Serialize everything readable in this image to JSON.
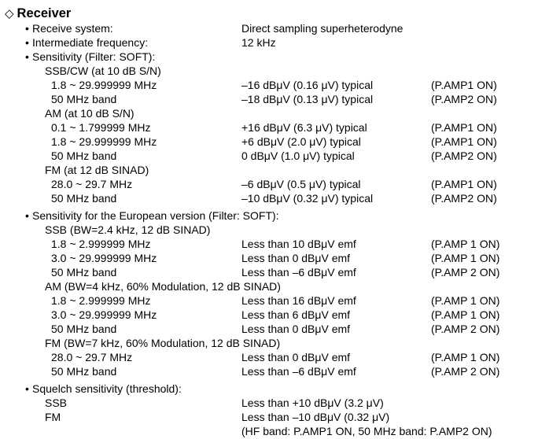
{
  "section": {
    "icon": "diamond-outline-icon",
    "title": "Receiver"
  },
  "lines": [
    {
      "level": 1,
      "label": "Receive system:",
      "value": "Direct sampling superheterodyne",
      "amp": ""
    },
    {
      "level": 1,
      "label": "Intermediate frequency:",
      "value": "12 kHz",
      "amp": ""
    },
    {
      "level": 1,
      "label": "Sensitivity (Filter: SOFT):",
      "value": "",
      "amp": ""
    },
    {
      "level": 2,
      "label": "SSB/CW (at 10 dB S/N)",
      "value": "",
      "amp": ""
    },
    {
      "level": 3,
      "label": "1.8 ~ 29.999999 MHz",
      "value": "–16 dBμV (0.16 μV) typical",
      "amp": "(P.AMP1 ON)"
    },
    {
      "level": 3,
      "label": "50 MHz band",
      "value": "–18 dBμV (0.13 μV) typical",
      "amp": "(P.AMP2 ON)"
    },
    {
      "level": 2,
      "label": "AM (at 10 dB S/N)",
      "value": "",
      "amp": ""
    },
    {
      "level": 3,
      "label": "0.1 ~ 1.799999 MHz",
      "value": "+16 dBμV (6.3 μV) typical",
      "amp": "(P.AMP1 ON)"
    },
    {
      "level": 3,
      "label": "1.8 ~ 29.999999 MHz",
      "value": "+6 dBμV (2.0 μV) typical",
      "amp": "(P.AMP1 ON)"
    },
    {
      "level": 3,
      "label": "50 MHz band",
      "value": "0 dBμV (1.0 μV) typical",
      "amp": "(P.AMP2 ON)"
    },
    {
      "level": 2,
      "label": "FM (at 12 dB SINAD)",
      "value": "",
      "amp": ""
    },
    {
      "level": 3,
      "label": "28.0 ~ 29.7 MHz",
      "value": "–6 dBμV (0.5 μV) typical",
      "amp": "(P.AMP1 ON)"
    },
    {
      "level": 3,
      "label": "50 MHz band",
      "value": "–10 dBμV (0.32 μV) typical",
      "amp": "(P.AMP2 ON)"
    },
    {
      "level": 1,
      "gap": true,
      "label": "Sensitivity for the European version (Filter: SOFT):",
      "value": "",
      "amp": ""
    },
    {
      "level": 2,
      "label": "SSB (BW=2.4 kHz, 12 dB SINAD)",
      "value": "",
      "amp": ""
    },
    {
      "level": 3,
      "label": "1.8 ~ 2.999999 MHz",
      "value": "Less than 10 dBμV emf",
      "amp": "(P.AMP 1 ON)"
    },
    {
      "level": 3,
      "label": "3.0 ~ 29.999999 MHz",
      "value": "Less than 0 dBμV emf",
      "amp": "(P.AMP 1 ON)"
    },
    {
      "level": 3,
      "label": "50 MHz band",
      "value": "Less than –6 dBμV emf",
      "amp": "(P.AMP 2 ON)"
    },
    {
      "level": 2,
      "label": "AM (BW=4 kHz, 60% Modulation, 12 dB SINAD)",
      "value": "",
      "amp": ""
    },
    {
      "level": 3,
      "label": "1.8 ~ 2.999999 MHz",
      "value": "Less than 16 dBμV emf",
      "amp": "(P.AMP 1 ON)"
    },
    {
      "level": 3,
      "label": "3.0 ~ 29.999999 MHz",
      "value": "Less than 6 dBμV emf",
      "amp": "(P.AMP 1 ON)"
    },
    {
      "level": 3,
      "label": "50 MHz band",
      "value": "Less than 0 dBμV emf",
      "amp": "(P.AMP 2 ON)"
    },
    {
      "level": 2,
      "label": "FM (BW=7 kHz, 60% Modulation, 12 dB SINAD)",
      "value": "",
      "amp": ""
    },
    {
      "level": 3,
      "label": "28.0 ~ 29.7 MHz",
      "value": "Less than 0 dBμV emf",
      "amp": "(P.AMP 1 ON)"
    },
    {
      "level": 3,
      "label": "50 MHz band",
      "value": "Less than –6 dBμV emf",
      "amp": "(P.AMP 2 ON)"
    },
    {
      "level": 1,
      "gap": true,
      "label": "Squelch sensitivity (threshold):",
      "value": "",
      "amp": ""
    },
    {
      "level": 2,
      "label": "SSB",
      "value": "Less than +10 dBμV (3.2 μV)",
      "amp": ""
    },
    {
      "level": 2,
      "label": "FM",
      "value": "Less than –10 dBμV (0.32 μV)",
      "amp": ""
    },
    {
      "level": 2,
      "label": "",
      "value": "(HF band: P.AMP1 ON, 50 MHz band: P.AMP2 ON)",
      "amp": ""
    }
  ]
}
